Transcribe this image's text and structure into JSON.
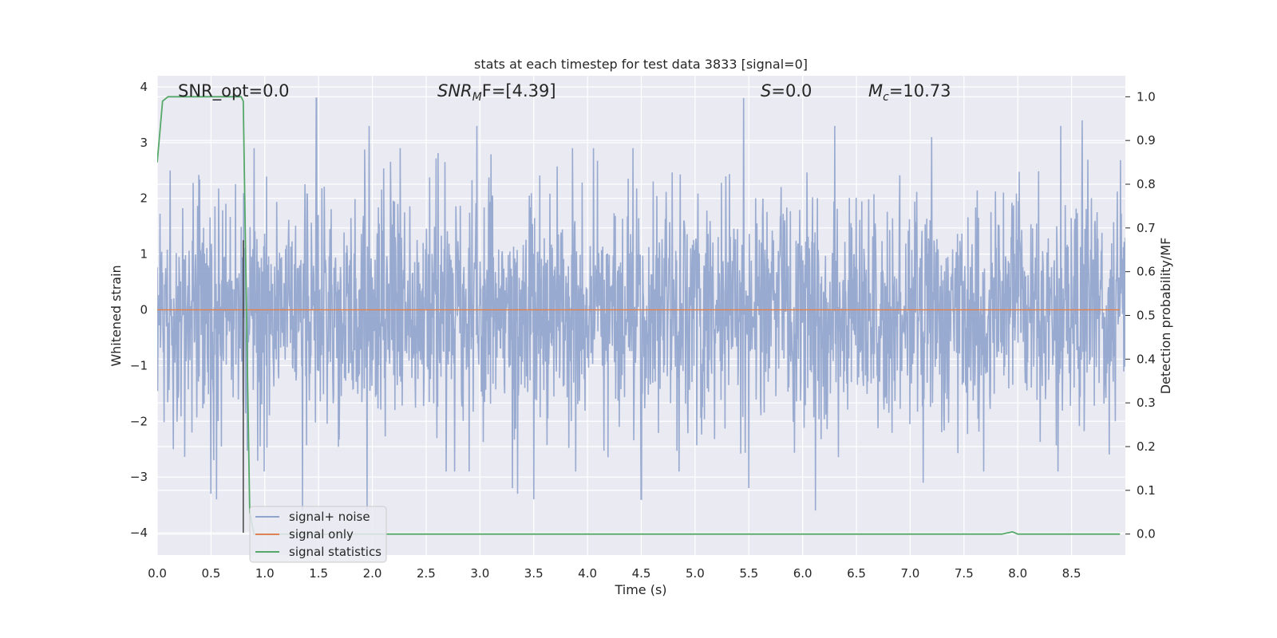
{
  "chart_data": {
    "type": "line",
    "title": "stats at each timestep for test data 3833 [signal=0]",
    "xlabel": "Time (s)",
    "ylabel": "Whitened strain",
    "y2label": "Detection probability/MF",
    "xlim": [
      0.0,
      9.0
    ],
    "ylim": [
      -4.4,
      4.2
    ],
    "y2lim": [
      -0.048,
      1.048
    ],
    "xticks": [
      "0.0",
      "0.5",
      "1.0",
      "1.5",
      "2.0",
      "2.5",
      "3.0",
      "3.5",
      "4.0",
      "4.5",
      "5.0",
      "5.5",
      "6.0",
      "6.5",
      "7.0",
      "7.5",
      "8.0",
      "8.5"
    ],
    "xtick_values": [
      0.0,
      0.5,
      1.0,
      1.5,
      2.0,
      2.5,
      3.0,
      3.5,
      4.0,
      4.5,
      5.0,
      5.5,
      6.0,
      6.5,
      7.0,
      7.5,
      8.0,
      8.5
    ],
    "yticks": [
      "−4",
      "−3",
      "−2",
      "−1",
      "0",
      "1",
      "2",
      "3",
      "4"
    ],
    "ytick_values": [
      -4,
      -3,
      -2,
      -1,
      0,
      1,
      2,
      3,
      4
    ],
    "y2ticks": [
      "0.0",
      "0.1",
      "0.2",
      "0.3",
      "0.4",
      "0.5",
      "0.6",
      "0.7",
      "0.8",
      "0.9",
      "1.0"
    ],
    "y2tick_values": [
      0.0,
      0.1,
      0.2,
      0.3,
      0.4,
      0.5,
      0.6,
      0.7,
      0.8,
      0.9,
      1.0
    ],
    "grid": true,
    "legend_position": "lower-left",
    "annotations": {
      "snr_opt": "SNR_opt=0.0",
      "snr_mf_prefix": "SNR",
      "snr_mf_sub": "M",
      "snr_mf_suffix": "F=[4.39]",
      "s_prefix": "S",
      "s_value": "=0.0",
      "mc_prefix": "M",
      "mc_sub": "c",
      "mc_value": "=10.73"
    },
    "marker_line_x": 0.8,
    "series": [
      {
        "name": "signal+ noise",
        "color": "#8fa3cc",
        "style": "noise",
        "amplitude_std": 1.0,
        "x_range": [
          0.0,
          9.0
        ],
        "peaks": [
          [
            0.12,
            2.5
          ],
          [
            0.15,
            -2.5
          ],
          [
            0.5,
            -3.3
          ],
          [
            0.55,
            -3.4
          ],
          [
            1.35,
            -3.6
          ],
          [
            1.48,
            3.8
          ],
          [
            1.95,
            -3.6
          ],
          [
            1.97,
            3.3
          ],
          [
            2.9,
            -2.9
          ],
          [
            2.97,
            3.3
          ],
          [
            3.3,
            -3.2
          ],
          [
            3.35,
            -3.3
          ],
          [
            3.5,
            -3.4
          ],
          [
            4.5,
            -3.4
          ],
          [
            5.45,
            3.8
          ],
          [
            5.5,
            -3.2
          ],
          [
            6.12,
            -3.6
          ],
          [
            6.3,
            3.3
          ],
          [
            7.12,
            -3.1
          ],
          [
            7.2,
            3.1
          ],
          [
            8.4,
            3.3
          ],
          [
            8.6,
            3.4
          ]
        ]
      },
      {
        "name": "signal only",
        "color": "#dd8452",
        "style": "flat",
        "value": 0.0
      },
      {
        "name": "signal statistics",
        "color": "#55a868",
        "style": "probability",
        "x": [
          0.0,
          0.05,
          0.1,
          0.2,
          0.3,
          0.4,
          0.5,
          0.6,
          0.7,
          0.78,
          0.8,
          0.83,
          0.86,
          0.9,
          1.0,
          2.0,
          3.0,
          4.0,
          5.0,
          6.0,
          7.0,
          7.85,
          7.95,
          8.0,
          8.1,
          8.5,
          8.95
        ],
        "y": [
          0.85,
          0.99,
          1.0,
          1.0,
          1.0,
          1.0,
          1.0,
          1.0,
          1.0,
          1.0,
          0.99,
          0.5,
          0.05,
          0.0,
          0.0,
          0.0,
          0.0,
          0.0,
          0.0,
          0.0,
          0.0,
          0.0,
          0.005,
          0.0,
          0.0,
          0.0,
          0.0
        ]
      }
    ]
  }
}
